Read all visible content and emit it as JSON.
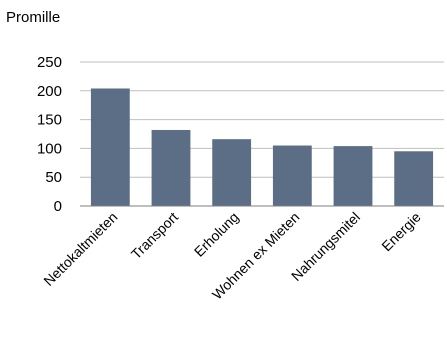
{
  "chart_data": {
    "type": "bar",
    "ylabel": "Promille",
    "xlabel": "",
    "categories": [
      "Nettokaltmieten",
      "Transport",
      "Erholung",
      "Wohnen ex Mieten",
      "Nahrungsmitel",
      "Energie"
    ],
    "values": [
      204,
      132,
      116,
      105,
      104,
      95
    ],
    "ylim": [
      0,
      250
    ],
    "yticks": [
      "0",
      "50",
      "100",
      "150",
      "200",
      "250"
    ],
    "grid": true,
    "bar_color": "#5b6e85",
    "grid_color": "#bfbfbf",
    "axis_color": "#7f7f7f"
  }
}
